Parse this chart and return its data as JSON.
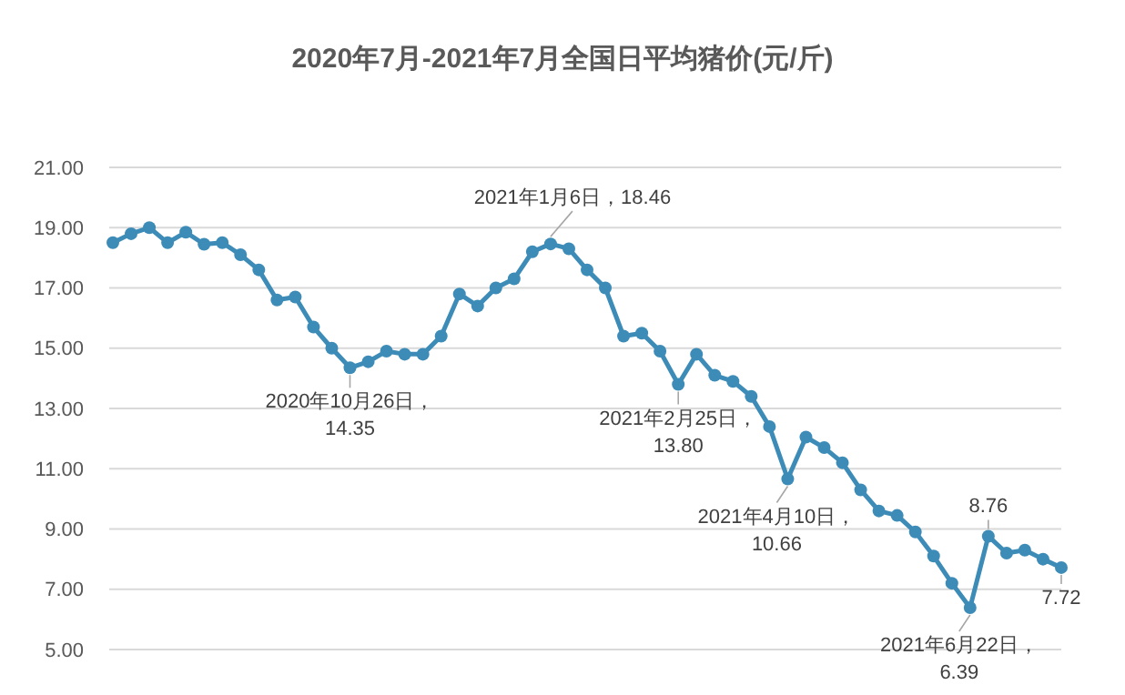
{
  "chart_data": {
    "type": "line",
    "title": "2020年7月-2021年7月全国日平均猪价(元/斤)",
    "categories": [
      null,
      null,
      null,
      null,
      null,
      null,
      null,
      null,
      null,
      null,
      null,
      null,
      null,
      null,
      null,
      null,
      null,
      null,
      null,
      null,
      null,
      null,
      null,
      null,
      null,
      null,
      null,
      null,
      null,
      null,
      null,
      null,
      null,
      null,
      null,
      null,
      null,
      null,
      null,
      null,
      null,
      null,
      null,
      null,
      null,
      null,
      null,
      null,
      null,
      null,
      null,
      null,
      null
    ],
    "series": [
      {
        "color": "#3d8cb8",
        "values": [
          18.5,
          18.8,
          19.0,
          18.5,
          18.85,
          18.45,
          18.5,
          18.1,
          17.6,
          16.6,
          16.7,
          15.7,
          15.0,
          14.35,
          14.55,
          14.9,
          14.8,
          14.8,
          15.4,
          16.8,
          16.4,
          17.0,
          17.3,
          18.2,
          18.46,
          18.3,
          17.6,
          17.0,
          15.4,
          15.5,
          14.9,
          13.8,
          14.8,
          14.1,
          13.9,
          13.4,
          12.4,
          10.66,
          12.05,
          11.7,
          11.2,
          10.3,
          9.6,
          9.45,
          8.9,
          8.1,
          7.2,
          6.39,
          8.76,
          8.2,
          8.3,
          8.0,
          7.72
        ]
      }
    ],
    "ylim": [
      5,
      21
    ],
    "yticks": [
      {
        "value": 5,
        "label": "5.00"
      },
      {
        "value": 7,
        "label": "7.00"
      },
      {
        "value": 9,
        "label": "9.00"
      },
      {
        "value": 11,
        "label": "11.00"
      },
      {
        "value": 13,
        "label": "13.00"
      },
      {
        "value": 15,
        "label": "15.00"
      },
      {
        "value": 17,
        "label": "17.00"
      },
      {
        "value": 19,
        "label": "19.00"
      },
      {
        "value": 21,
        "label": "21.00"
      }
    ],
    "tick_labels": "y",
    "grid": "y",
    "marker": "circle",
    "line_style": "solid",
    "annotations": [
      {
        "text": "2021年1月6日，18.46",
        "y": 18.46
      },
      {
        "text": "2020年10月26日，14.35",
        "y": 14.35
      },
      {
        "text": "2021年2月25日，13.80",
        "y": 13.8
      },
      {
        "text": "2021年4月10日，10.66",
        "y": 10.66
      },
      {
        "text": "2021年6月22日，6.39",
        "y": 6.39
      },
      {
        "text": "8.76",
        "y": 8.76
      },
      {
        "text": "7.72",
        "y": 7.72
      }
    ]
  }
}
